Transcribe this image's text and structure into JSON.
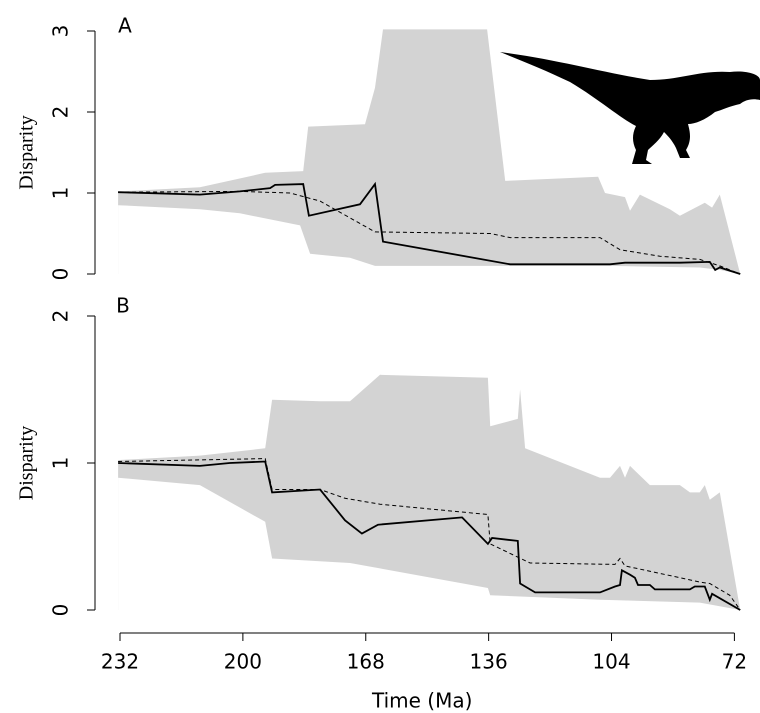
{
  "chart_data": [
    {
      "type": "line",
      "panel_label": "A",
      "ylabel": "Disparity",
      "xlim": [
        232,
        72
      ],
      "ylim": [
        0,
        3
      ],
      "yticks": [
        0,
        1,
        2,
        3
      ],
      "upper": {
        "x": [
          232.5,
          211.2,
          194.2,
          184.3,
          183.0,
          168.2,
          165.6,
          163.5,
          136.4,
          131.7,
          107.5,
          105.7,
          100.5,
          99.2,
          96.6,
          88.8,
          86.2,
          79.7,
          77.8,
          75.8,
          70.5
        ],
        "values": [
          1.02,
          1.07,
          1.25,
          1.27,
          1.82,
          1.85,
          2.3,
          3.02,
          3.02,
          1.15,
          1.2,
          1.0,
          0.95,
          0.78,
          0.98,
          0.8,
          0.72,
          0.88,
          0.82,
          0.98,
          0
        ]
      },
      "lower": {
        "x": [
          232.5,
          211.2,
          200.8,
          185.1,
          182.5,
          172.1,
          165.6,
          136.4,
          104.4,
          81.0,
          75.8,
          70.5
        ],
        "values": [
          0.85,
          0.8,
          0.75,
          0.6,
          0.25,
          0.2,
          0.1,
          0.1,
          0.1,
          0.08,
          0.05,
          0
        ]
      },
      "expected": {
        "x": [
          232.5,
          200.8,
          187.7,
          179.9,
          165.6,
          135.6,
          130.4,
          107.0,
          101.8,
          91.4,
          81.0,
          75.8,
          70.5
        ],
        "values": [
          1.01,
          1.02,
          1.0,
          0.9,
          0.52,
          0.5,
          0.45,
          0.45,
          0.3,
          0.22,
          0.18,
          0.1,
          0
        ]
      },
      "observed": {
        "x": [
          232.5,
          211.2,
          200.8,
          192.9,
          191.6,
          184.3,
          182.8,
          169.5,
          165.6,
          163.5,
          130.4,
          104.4,
          100.5,
          86.2,
          78.4,
          77.0,
          75.8,
          70.5
        ],
        "values": [
          1.01,
          0.98,
          1.02,
          1.06,
          1.1,
          1.11,
          0.72,
          0.86,
          1.11,
          0.4,
          0.12,
          0.12,
          0.14,
          0.14,
          0.15,
          0.05,
          0.08,
          0
        ]
      }
    },
    {
      "type": "line",
      "panel_label": "B",
      "ylabel": "Disparity",
      "xlabel": "Time (Ma)",
      "xlim": [
        232,
        72
      ],
      "xticks": [
        232,
        200,
        168,
        136,
        104,
        72
      ],
      "ylim": [
        0,
        2
      ],
      "yticks": [
        0,
        1,
        2
      ],
      "upper": {
        "x": [
          232.5,
          211.2,
          194.2,
          192.4,
          179.9,
          172.1,
          164.3,
          136.2,
          135.6,
          128.4,
          127.8,
          126.5,
          107.0,
          104.4,
          101.8,
          100.5,
          99.2,
          94.0,
          86.2,
          83.6,
          81.0,
          79.7,
          78.4,
          75.8,
          70.5
        ],
        "values": [
          1.02,
          1.05,
          1.1,
          1.43,
          1.42,
          1.42,
          1.6,
          1.58,
          1.25,
          1.3,
          1.5,
          1.1,
          0.9,
          0.9,
          0.98,
          0.9,
          0.98,
          0.85,
          0.85,
          0.8,
          0.8,
          0.85,
          0.75,
          0.8,
          0
        ]
      },
      "lower": {
        "x": [
          232.5,
          211.2,
          194.2,
          192.4,
          172.1,
          136.2,
          135.6,
          107.0,
          81.0,
          70.5
        ],
        "values": [
          0.9,
          0.85,
          0.6,
          0.35,
          0.32,
          0.15,
          0.1,
          0.07,
          0.05,
          0
        ]
      },
      "expected": {
        "x": [
          232.5,
          194.2,
          192.4,
          179.9,
          173.4,
          164.3,
          136.2,
          135.6,
          125.2,
          103.1,
          101.8,
          100.5,
          86.2,
          81.0,
          78.4,
          73.2,
          70.5
        ],
        "values": [
          1.01,
          1.03,
          0.82,
          0.82,
          0.76,
          0.72,
          0.65,
          0.45,
          0.32,
          0.31,
          0.35,
          0.3,
          0.22,
          0.19,
          0.18,
          0.1,
          0
        ]
      },
      "observed": {
        "x": [
          232.5,
          211.2,
          203.4,
          194.2,
          192.4,
          179.9,
          173.4,
          169.0,
          164.8,
          142.9,
          136.2,
          135.1,
          128.4,
          127.8,
          123.9,
          107.0,
          103.1,
          101.8,
          101.3,
          99.2,
          97.9,
          97.1,
          94.0,
          92.7,
          83.6,
          82.3,
          79.7,
          78.4,
          77.8,
          70.5
        ],
        "values": [
          1.0,
          0.98,
          1.0,
          1.01,
          0.8,
          0.82,
          0.61,
          0.52,
          0.58,
          0.63,
          0.45,
          0.49,
          0.47,
          0.18,
          0.12,
          0.12,
          0.16,
          0.17,
          0.27,
          0.24,
          0.22,
          0.17,
          0.17,
          0.14,
          0.14,
          0.16,
          0.16,
          0.07,
          0.11,
          0
        ]
      }
    }
  ]
}
